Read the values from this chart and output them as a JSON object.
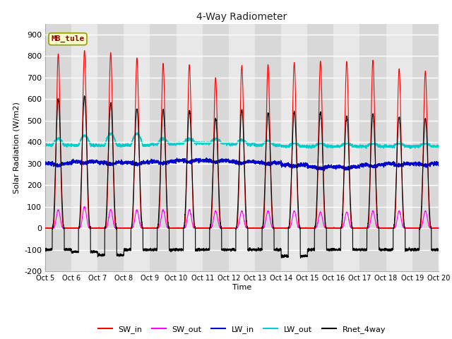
{
  "title": "4-Way Radiometer",
  "xlabel": "Time",
  "ylabel": "Solar Radiation (W/m2)",
  "station_label": "MB_tule",
  "ylim": [
    -200,
    950
  ],
  "yticks": [
    -200,
    -100,
    0,
    100,
    200,
    300,
    400,
    500,
    600,
    700,
    800,
    900
  ],
  "x_tick_labels": [
    "Oct 5",
    "Oct 6",
    "Oct 7",
    "Oct 8",
    "Oct 9",
    "Oct 10",
    "Oct 11",
    "Oct 12",
    "Oct 13",
    "Oct 14",
    "Oct 15",
    "Oct 16",
    "Oct 17",
    "Oct 18",
    "Oct 19",
    "Oct 20"
  ],
  "num_days": 15,
  "colors": {
    "SW_in": "#ff0000",
    "SW_out": "#ff00ff",
    "LW_in": "#0000cc",
    "LW_out": "#00cccc",
    "Rnet_4way": "#000000"
  },
  "legend_labels": [
    "SW_in",
    "SW_out",
    "LW_in",
    "LW_out",
    "Rnet_4way"
  ],
  "background_color": "#ffffff",
  "plot_bg_color": "#e8e8e8",
  "band_color": "#d0d0d0",
  "SW_in_peaks": [
    810,
    825,
    815,
    790,
    765,
    760,
    700,
    755,
    760,
    770,
    775,
    775,
    780,
    740,
    730
  ],
  "SW_out_peaks": [
    85,
    100,
    85,
    85,
    85,
    85,
    80,
    80,
    80,
    80,
    75,
    75,
    80,
    80,
    80
  ],
  "LW_in_base": [
    300,
    310,
    305,
    305,
    310,
    315,
    315,
    310,
    305,
    295,
    285,
    285,
    295,
    300,
    300
  ],
  "LW_out_base": [
    385,
    385,
    385,
    385,
    390,
    395,
    395,
    390,
    385,
    380,
    380,
    380,
    380,
    380,
    380
  ],
  "LW_out_day_bump": [
    30,
    45,
    55,
    55,
    25,
    20,
    20,
    20,
    20,
    15,
    15,
    15,
    15,
    15,
    15
  ],
  "Rnet_peaks": [
    600,
    610,
    580,
    555,
    550,
    545,
    510,
    550,
    535,
    540,
    540,
    520,
    530,
    515,
    510
  ],
  "Rnet_night": [
    -100,
    -110,
    -125,
    -100,
    -100,
    -100,
    -100,
    -100,
    -100,
    -130,
    -100,
    -100,
    -100,
    -100,
    -100
  ]
}
